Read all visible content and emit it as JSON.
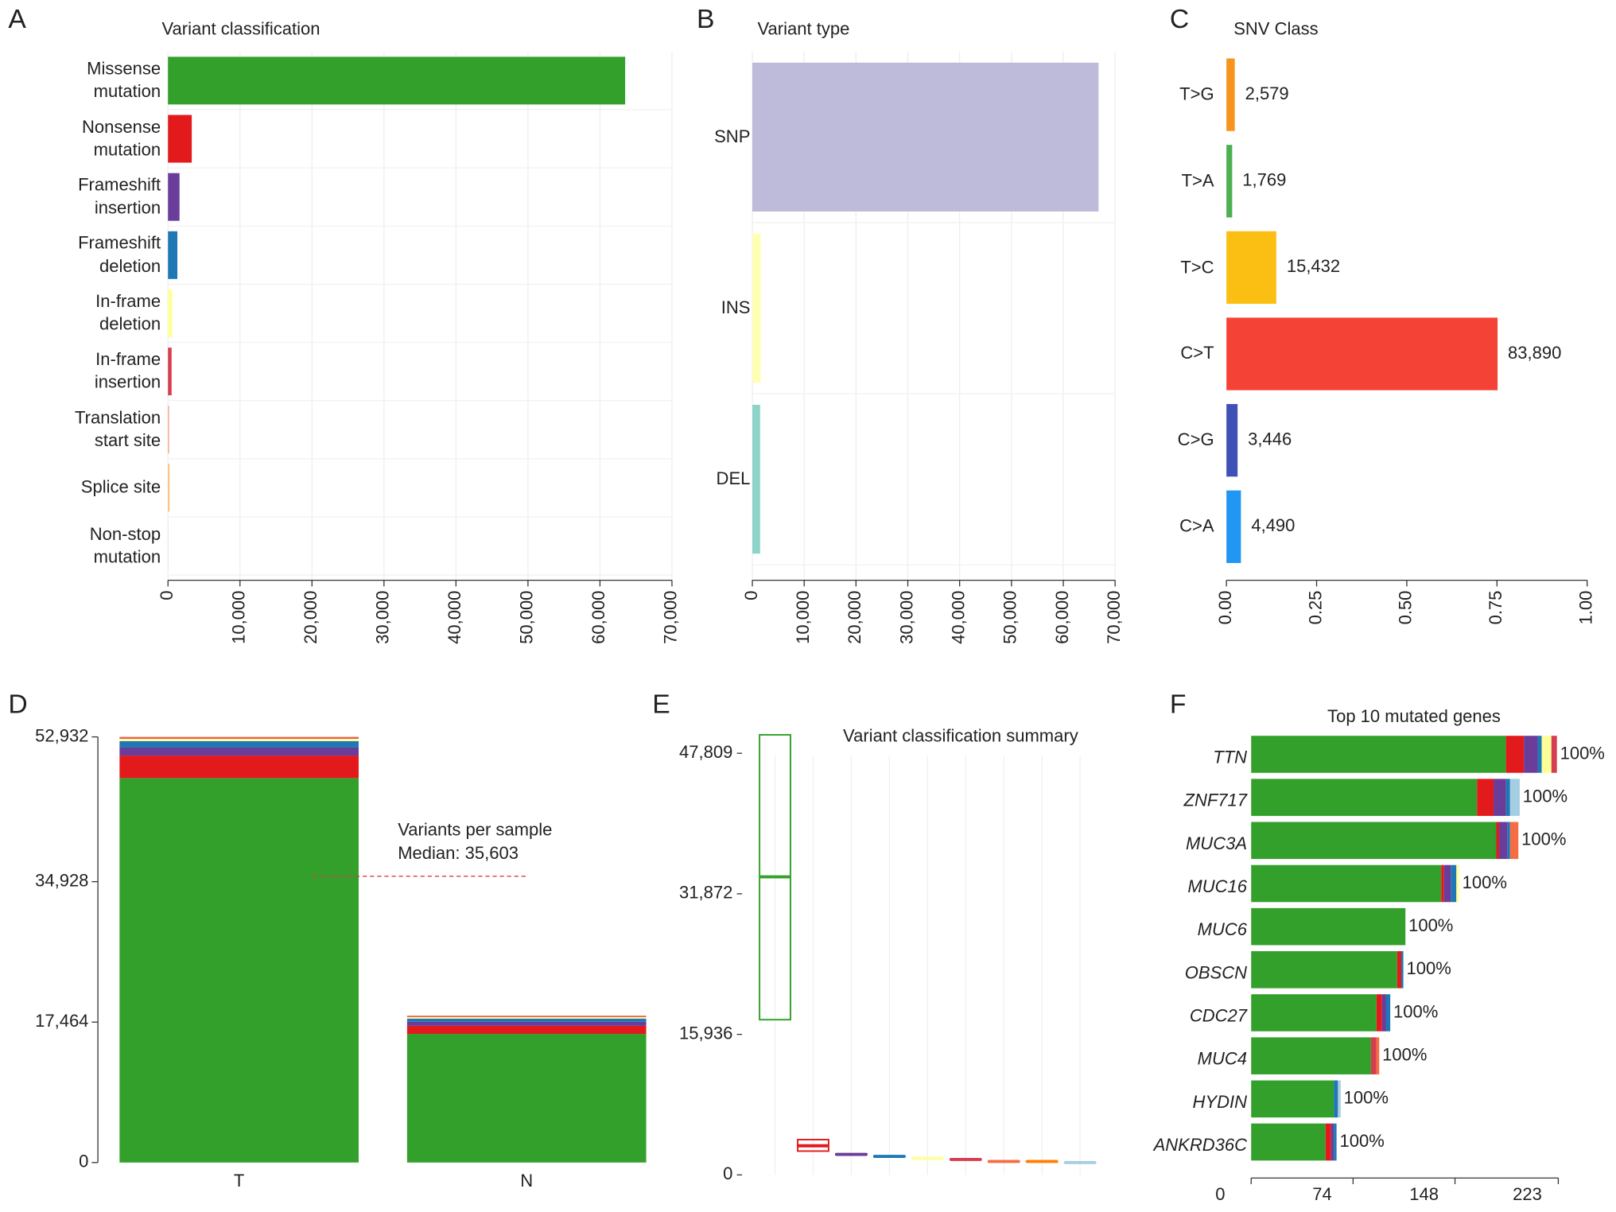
{
  "chart_data": [
    {
      "panel": "A",
      "type": "hbar",
      "title": "Variant classification",
      "categories": [
        "Missense\nmutation",
        "Nonsense\nmutation",
        "Frameshift\ninsertion",
        "Frameshift\ndeletion",
        "In-frame\ndeletion",
        "In-frame\ninsertion",
        "Translation\nstart site",
        "Splice site",
        "Non-stop\nmutation"
      ],
      "values": [
        63500,
        3300,
        1600,
        1300,
        600,
        500,
        150,
        200,
        50
      ],
      "colors": [
        "#33a02c",
        "#e31a1c",
        "#6a3d9a",
        "#1f78b4",
        "#ffff99",
        "#d53e4f",
        "#f4a582",
        "#fdbf6f",
        "#e0e0e0"
      ],
      "xlim": [
        0,
        70000
      ],
      "xticks": [
        0,
        {
          "value": 10000,
          "label": "10,000"
        },
        {
          "value": 20000,
          "label": "20,000"
        },
        {
          "value": 30000,
          "label": "30,000"
        },
        {
          "value": 40000,
          "label": "40,000"
        },
        {
          "value": 50000,
          "label": "50,000"
        },
        {
          "value": 60000,
          "label": "60,000"
        },
        {
          "value": 70000,
          "label": "70,000"
        }
      ],
      "grid": true
    },
    {
      "panel": "B",
      "type": "hbar",
      "title": "Variant type",
      "categories": [
        "SNP",
        "INS",
        "DEL"
      ],
      "values": [
        66800,
        1600,
        1500
      ],
      "colors": [
        "#bebada",
        "#ffffb3",
        "#8dd3c7"
      ],
      "xlim": [
        0,
        70000
      ],
      "xticks": [
        0,
        {
          "value": 10000,
          "label": "10,000"
        },
        {
          "value": 20000,
          "label": "20,000"
        },
        {
          "value": 30000,
          "label": "30,000"
        },
        {
          "value": 40000,
          "label": "40,000"
        },
        {
          "value": 50000,
          "label": "50,000"
        },
        {
          "value": 60000,
          "label": "60,000"
        },
        {
          "value": 70000,
          "label": "70,000"
        }
      ],
      "grid": true
    },
    {
      "panel": "C",
      "type": "hbar",
      "title": "SNV Class",
      "categories": [
        "T>G",
        "T>A",
        "T>C",
        "C>T",
        "C>G",
        "C>A"
      ],
      "values": [
        0.0231,
        0.0159,
        0.1383,
        0.7517,
        0.0309,
        0.0402
      ],
      "value_labels": [
        "2,579",
        "1,769",
        "15,432",
        "83,890",
        "3,446",
        "4,490"
      ],
      "colors": [
        "#f7941d",
        "#4caf50",
        "#fbbf14",
        "#f44336",
        "#3f51b5",
        "#2196f3"
      ],
      "xlim": [
        0,
        1
      ],
      "xticks": [
        {
          "value": 0,
          "label": "0.00"
        },
        0.25,
        {
          "value": 0.5,
          "label": "0.50"
        },
        0.75,
        {
          "value": 1,
          "label": "1.00"
        }
      ],
      "grid": false
    },
    {
      "panel": "D",
      "type": "stacked-bar",
      "categories": [
        "T",
        "N"
      ],
      "series": [
        {
          "color": "#33a02c",
          "values": [
            47809,
            16000
          ]
        },
        {
          "color": "#e31a1c",
          "values": [
            2800,
            1000
          ]
        },
        {
          "color": "#6a3d9a",
          "values": [
            1000,
            500
          ]
        },
        {
          "color": "#1f78b4",
          "values": [
            800,
            400
          ]
        },
        {
          "color": "#ffff99",
          "values": [
            300,
            200
          ]
        },
        {
          "color": "#d53e4f",
          "values": [
            150,
            100
          ]
        },
        {
          "color": "#f46d43",
          "values": [
            73,
            74
          ]
        }
      ],
      "ylim": [
        0,
        52932
      ],
      "yticks": [
        0,
        {
          "value": 17464,
          "label": "17,464"
        },
        {
          "value": 34928,
          "label": "34,928"
        },
        {
          "value": 52932,
          "label": "52,932"
        }
      ],
      "median": 35603,
      "annotation": [
        "Variants per sample",
        "Median: 35,603"
      ]
    },
    {
      "panel": "E",
      "type": "box",
      "title": "Variant classification summary",
      "boxes": [
        {
          "q1": 17600,
          "median": 33800,
          "q3": 49900,
          "color": "#33a02c"
        },
        {
          "q1": 2700,
          "median": 3300,
          "q3": 4000,
          "color": "#e31a1c"
        },
        {
          "q1": 2280,
          "median": 2330,
          "q3": 2380,
          "color": "#6a3d9a"
        },
        {
          "q1": 2050,
          "median": 2100,
          "q3": 2150,
          "color": "#1f78b4"
        },
        {
          "q1": 1850,
          "median": 1870,
          "q3": 1900,
          "color": "#ffff99"
        },
        {
          "q1": 1720,
          "median": 1750,
          "q3": 1780,
          "color": "#d53e4f"
        },
        {
          "q1": 1500,
          "median": 1520,
          "q3": 1540,
          "color": "#f46d43"
        },
        {
          "q1": 1500,
          "median": 1520,
          "q3": 1540,
          "color": "#ff7f00"
        },
        {
          "q1": 1380,
          "median": 1400,
          "q3": 1420,
          "color": "#a6cee3"
        }
      ],
      "ylim": [
        0,
        49900
      ],
      "yticks": [
        0,
        {
          "value": 15936,
          "label": "15,936"
        },
        {
          "value": 31872,
          "label": "31,872"
        },
        {
          "value": 47809,
          "label": "47,809"
        }
      ]
    },
    {
      "panel": "F",
      "type": "stacked-hbar",
      "title": "Top 10 mutated genes",
      "categories": [
        "TTN",
        "ZNF717",
        "MUC3A",
        "MUC16",
        "MUC6",
        "OBSCN",
        "CDC27",
        "MUC4",
        "HYDIN",
        "ANKRD36C"
      ],
      "series": [
        {
          "color": "#33a02c",
          "values": [
            185,
            164,
            178,
            138,
            112,
            106,
            91,
            87,
            60,
            54
          ]
        },
        {
          "color": "#e31a1c",
          "values": [
            13,
            12,
            2,
            2,
            0,
            3,
            4,
            0,
            0,
            4
          ]
        },
        {
          "color": "#6a3d9a",
          "values": [
            10,
            9,
            6,
            5,
            0,
            0,
            3,
            0,
            0,
            2
          ]
        },
        {
          "color": "#1f78b4",
          "values": [
            3,
            3,
            2,
            4,
            0,
            1.5,
            3,
            0,
            3,
            2
          ]
        },
        {
          "color": "#ffff99",
          "values": [
            7,
            0,
            0,
            2,
            0,
            0,
            0,
            0,
            0,
            0
          ]
        },
        {
          "color": "#d53e4f",
          "values": [
            4,
            0,
            0,
            0,
            0,
            0,
            0,
            4,
            0,
            0
          ]
        },
        {
          "color": "#f46d43",
          "values": [
            0,
            0,
            6,
            0,
            0,
            0,
            0,
            2,
            0,
            0
          ]
        },
        {
          "color": "#a6cee3",
          "values": [
            0,
            7,
            0,
            0,
            0,
            0,
            0,
            0,
            2,
            0
          ]
        }
      ],
      "value_labels": [
        "100%",
        "100%",
        "100%",
        "100%",
        "100%",
        "100%",
        "100%",
        "100%",
        "100%",
        "100%"
      ],
      "xlim": [
        0,
        223
      ],
      "xticks": [
        0,
        74,
        148,
        223
      ]
    }
  ]
}
